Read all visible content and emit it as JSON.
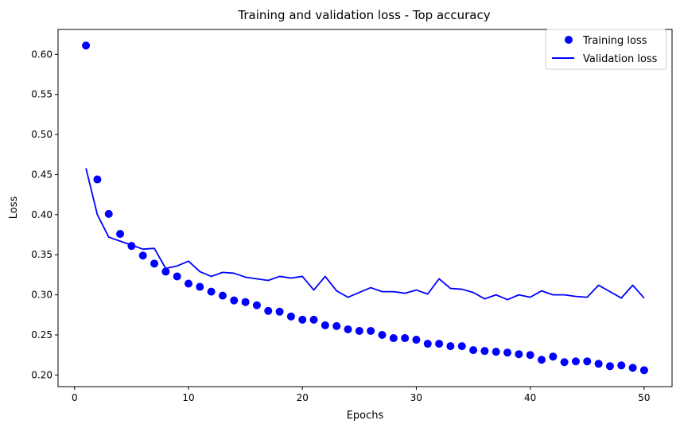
{
  "chart_data": {
    "type": "line",
    "title": "Training and validation loss - Top accuracy",
    "xlabel": "Epochs",
    "ylabel": "Loss",
    "xlim": [
      -1.45,
      52.45
    ],
    "ylim": [
      0.1855,
      0.6311
    ],
    "x_ticks": [
      0,
      10,
      20,
      30,
      40,
      50
    ],
    "y_ticks": [
      0.2,
      0.25,
      0.3,
      0.35,
      0.4,
      0.45,
      0.5,
      0.55,
      0.6
    ],
    "y_tick_labels": [
      "0.20",
      "0.25",
      "0.30",
      "0.35",
      "0.40",
      "0.45",
      "0.50",
      "0.55",
      "0.60"
    ],
    "grid": false,
    "legend_position": "top-right",
    "x": [
      1,
      2,
      3,
      4,
      5,
      6,
      7,
      8,
      9,
      10,
      11,
      12,
      13,
      14,
      15,
      16,
      17,
      18,
      19,
      20,
      21,
      22,
      23,
      24,
      25,
      26,
      27,
      28,
      29,
      30,
      31,
      32,
      33,
      34,
      35,
      36,
      37,
      38,
      39,
      40,
      41,
      42,
      43,
      44,
      45,
      46,
      47,
      48,
      49,
      50
    ],
    "series": [
      {
        "name": "Training loss",
        "style": "markers",
        "color": "#0000ff",
        "values": [
          0.611,
          0.444,
          0.401,
          0.376,
          0.361,
          0.349,
          0.339,
          0.329,
          0.323,
          0.314,
          0.31,
          0.304,
          0.299,
          0.293,
          0.291,
          0.287,
          0.28,
          0.279,
          0.273,
          0.269,
          0.269,
          0.262,
          0.261,
          0.257,
          0.255,
          0.255,
          0.25,
          0.246,
          0.246,
          0.244,
          0.239,
          0.239,
          0.236,
          0.236,
          0.231,
          0.23,
          0.229,
          0.228,
          0.226,
          0.225,
          0.219,
          0.223,
          0.216,
          0.217,
          0.217,
          0.214,
          0.211,
          0.212,
          0.209,
          0.206
        ]
      },
      {
        "name": "Validation loss",
        "style": "line",
        "color": "#0000ff",
        "values": [
          0.458,
          0.4,
          0.372,
          0.367,
          0.362,
          0.357,
          0.358,
          0.333,
          0.336,
          0.342,
          0.329,
          0.323,
          0.328,
          0.327,
          0.322,
          0.32,
          0.318,
          0.323,
          0.321,
          0.323,
          0.306,
          0.323,
          0.305,
          0.297,
          0.303,
          0.309,
          0.304,
          0.304,
          0.302,
          0.306,
          0.301,
          0.32,
          0.308,
          0.307,
          0.303,
          0.295,
          0.3,
          0.294,
          0.3,
          0.297,
          0.305,
          0.3,
          0.3,
          0.298,
          0.297,
          0.312,
          0.304,
          0.296,
          0.312,
          0.296
        ]
      }
    ]
  }
}
